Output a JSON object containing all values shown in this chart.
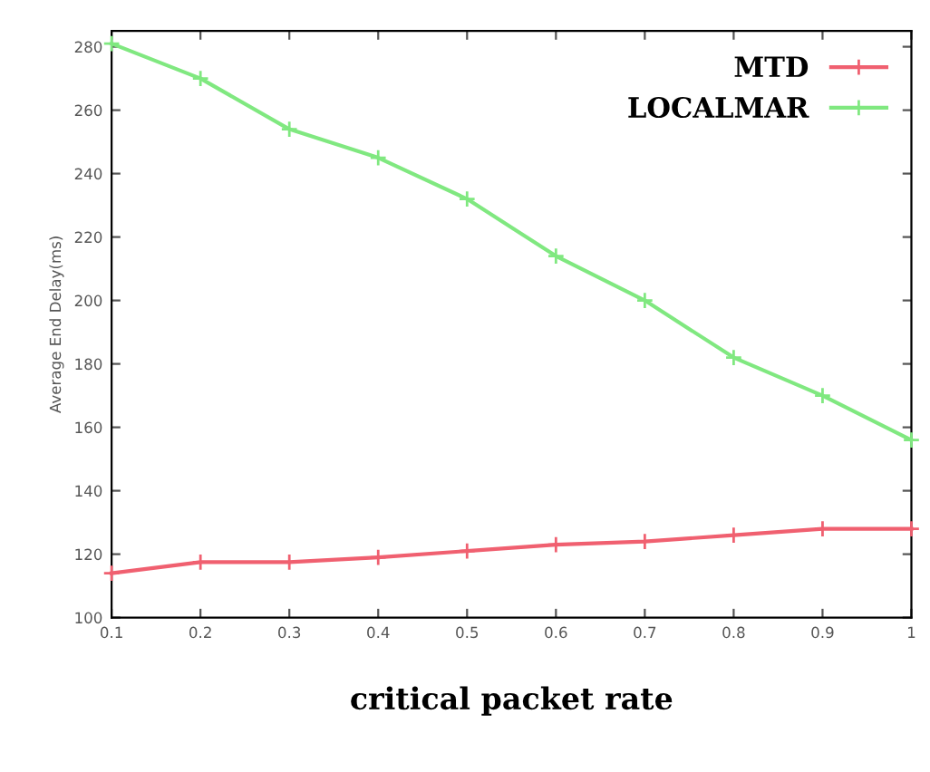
{
  "chart_data": {
    "type": "line",
    "xlabel": "critical packet rate",
    "ylabel": "Average End Delay(ms)",
    "x": [
      0.1,
      0.2,
      0.3,
      0.4,
      0.5,
      0.6,
      0.7,
      0.8,
      0.9,
      1
    ],
    "series": [
      {
        "name": "MTD",
        "color": "#f06070",
        "values": [
          114,
          117.5,
          117.5,
          119,
          121,
          123,
          124,
          126,
          128,
          128
        ]
      },
      {
        "name": "LOCALMAR",
        "color": "#80e880",
        "values": [
          281,
          270,
          254,
          245,
          232,
          214,
          200,
          182,
          170,
          156
        ]
      }
    ],
    "xlim": [
      0.1,
      1
    ],
    "xticks": [
      0.1,
      0.2,
      0.3,
      0.4,
      0.5,
      0.6,
      0.7,
      0.8,
      0.9,
      1
    ],
    "ylim": [
      100,
      285
    ],
    "yticks": [
      100,
      120,
      140,
      160,
      180,
      200,
      220,
      240,
      260,
      280
    ],
    "marker": "cross",
    "legend": "top right",
    "grid": false
  }
}
